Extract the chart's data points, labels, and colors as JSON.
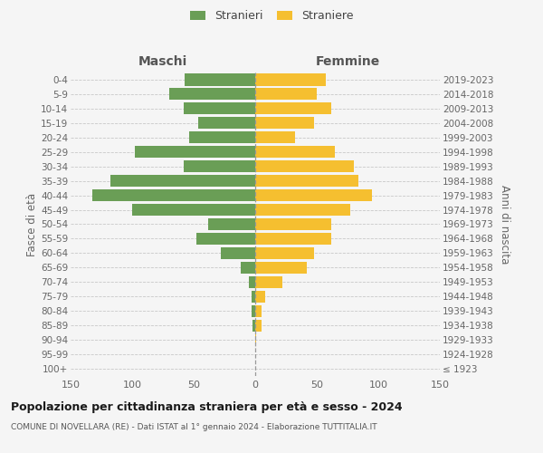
{
  "age_groups": [
    "100+",
    "95-99",
    "90-94",
    "85-89",
    "80-84",
    "75-79",
    "70-74",
    "65-69",
    "60-64",
    "55-59",
    "50-54",
    "45-49",
    "40-44",
    "35-39",
    "30-34",
    "25-29",
    "20-24",
    "15-19",
    "10-14",
    "5-9",
    "0-4"
  ],
  "birth_years": [
    "≤ 1923",
    "1924-1928",
    "1929-1933",
    "1934-1938",
    "1939-1943",
    "1944-1948",
    "1949-1953",
    "1954-1958",
    "1959-1963",
    "1964-1968",
    "1969-1973",
    "1974-1978",
    "1979-1983",
    "1984-1988",
    "1989-1993",
    "1994-1998",
    "1999-2003",
    "2004-2008",
    "2009-2013",
    "2014-2018",
    "2019-2023"
  ],
  "males": [
    0,
    0,
    0,
    2,
    3,
    3,
    5,
    12,
    28,
    48,
    38,
    100,
    132,
    118,
    58,
    98,
    54,
    46,
    58,
    70,
    57
  ],
  "females": [
    0,
    0,
    1,
    5,
    5,
    8,
    22,
    42,
    48,
    62,
    62,
    77,
    95,
    84,
    80,
    65,
    32,
    48,
    62,
    50,
    57
  ],
  "male_color": "#6a9e56",
  "female_color": "#f5bf30",
  "bg_color": "#f5f5f5",
  "grid_color": "#c8c8c8",
  "title": "Popolazione per cittadinanza straniera per età e sesso - 2024",
  "subtitle": "COMUNE DI NOVELLARA (RE) - Dati ISTAT al 1° gennaio 2024 - Elaborazione TUTTITALIA.IT",
  "label_maschi": "Maschi",
  "label_femmine": "Femmine",
  "label_fasce": "Fasce di età",
  "label_anni": "Anni di nascita",
  "legend_stranieri": "Stranieri",
  "legend_straniere": "Straniere",
  "xlim": 150
}
